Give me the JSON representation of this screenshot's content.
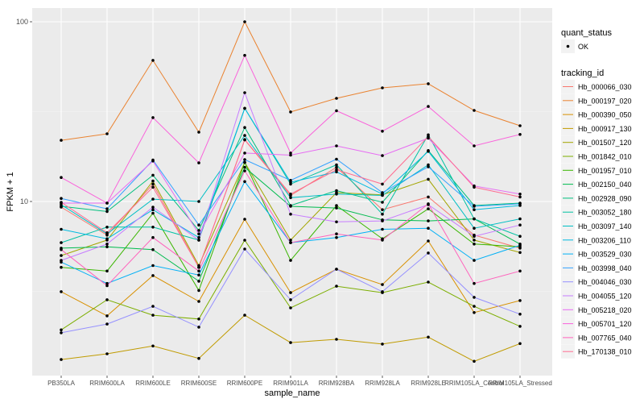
{
  "chart_data": {
    "type": "line",
    "xlabel": "sample_name",
    "ylabel": "FPKM + 1",
    "yscale": "log10",
    "ylim": [
      1.05,
      125
    ],
    "yticks": [
      10,
      100
    ],
    "ytick_labels": [
      "10",
      "100"
    ],
    "grid": true,
    "legend_position": "right",
    "categories": [
      "PB350LA",
      "RRIM600LA",
      "RRIM600LE",
      "RRIM600SE",
      "RRIM600PE",
      "RRIM901LA",
      "RRIM928BA",
      "RRIM928LA",
      "RRIM928LE",
      "RRIM105LA_Control",
      "RRIM105LA_Stressed"
    ],
    "shape_legend": {
      "title": "quant_status",
      "entries": [
        "OK"
      ]
    },
    "color_legend_title": "tracking_id",
    "series": [
      {
        "name": "Hb_000066_030",
        "color": "#F8766D",
        "values": [
          9.3,
          6.5,
          12.5,
          4.3,
          22,
          10.8,
          15.5,
          9.0,
          10.6,
          6.5,
          5.5
        ]
      },
      {
        "name": "Hb_000197_020",
        "color": "#EA8331",
        "values": [
          21.9,
          23.8,
          61,
          24.3,
          100,
          31.5,
          37.5,
          42.9,
          45.2,
          32.1,
          26.4
        ]
      },
      {
        "name": "Hb_000390_050",
        "color": "#D89000",
        "values": [
          3.15,
          2.31,
          3.87,
          2.78,
          7.97,
          3.11,
          4.2,
          3.45,
          6.03,
          2.41,
          2.81
        ]
      },
      {
        "name": "Hb_000917_130",
        "color": "#C09B00",
        "values": [
          1.32,
          1.42,
          1.57,
          1.34,
          2.33,
          1.64,
          1.71,
          1.61,
          1.76,
          1.29,
          1.62
        ]
      },
      {
        "name": "Hb_001507_120",
        "color": "#A3A500",
        "values": [
          5.0,
          6.1,
          13.0,
          4.4,
          16.5,
          6.1,
          11.2,
          10.9,
          13.3,
          6.1,
          5.2
        ]
      },
      {
        "name": "Hb_001842_010",
        "color": "#7CAE00",
        "values": [
          1.93,
          2.84,
          2.33,
          2.22,
          6.09,
          2.56,
          3.38,
          3.11,
          3.56,
          2.61,
          2.02
        ]
      },
      {
        "name": "Hb_001957_010",
        "color": "#39B600",
        "values": [
          4.3,
          4.1,
          8.6,
          3.2,
          16.5,
          4.7,
          9.5,
          6.2,
          9.1,
          5.8,
          5.6
        ]
      },
      {
        "name": "Hb_002150_040",
        "color": "#00BB4E",
        "values": [
          5.5,
          5.6,
          5.4,
          3.6,
          15.5,
          9.4,
          9.2,
          7.9,
          7.8,
          8.0,
          5.8
        ]
      },
      {
        "name": "Hb_002928_090",
        "color": "#00BF7D",
        "values": [
          9.4,
          8.8,
          14,
          6.9,
          25.8,
          9.5,
          11.5,
          9.9,
          19.2,
          9.5,
          9.8
        ]
      },
      {
        "name": "Hb_003052_180",
        "color": "#00C1A3",
        "values": [
          5.9,
          7.2,
          7.2,
          6.1,
          33,
          12.5,
          16.0,
          8.5,
          23.5,
          8.0,
          6.4
        ]
      },
      {
        "name": "Hb_003097_140",
        "color": "#00BFC4",
        "values": [
          9.6,
          6.6,
          10.3,
          10.0,
          23.3,
          10.5,
          11.0,
          10.8,
          16.0,
          7.1,
          8.0
        ]
      },
      {
        "name": "Hb_003206_110",
        "color": "#00BAE0",
        "values": [
          7.0,
          6.2,
          9.0,
          6.3,
          33,
          12.8,
          14.6,
          11.0,
          19.0,
          9.0,
          9.5
        ]
      },
      {
        "name": "Hb_003529_030",
        "color": "#00B0F6",
        "values": [
          4.6,
          3.5,
          4.4,
          3.9,
          12.9,
          5.9,
          6.3,
          7.0,
          7.1,
          4.7,
          5.7
        ]
      },
      {
        "name": "Hb_003998_040",
        "color": "#35A2FF",
        "values": [
          10.4,
          9.1,
          17,
          7.4,
          17.1,
          13.1,
          17.2,
          11.2,
          15.6,
          9.4,
          9.7
        ]
      },
      {
        "name": "Hb_004046_030",
        "color": "#9590FF",
        "values": [
          1.86,
          2.08,
          2.61,
          2.0,
          5.44,
          2.84,
          4.2,
          3.15,
          5.17,
          2.93,
          2.36
        ]
      },
      {
        "name": "Hb_004055_120",
        "color": "#C77CFF",
        "values": [
          4.7,
          5.8,
          9.3,
          6.1,
          40.3,
          8.5,
          7.7,
          7.8,
          9.6,
          6.4,
          7.4
        ]
      },
      {
        "name": "Hb_005218_020",
        "color": "#E76BF3",
        "values": [
          9.8,
          9.8,
          16.8,
          6.6,
          18.6,
          18.1,
          20.4,
          18.0,
          22.5,
          12.2,
          11.0
        ]
      },
      {
        "name": "Hb_005701_120",
        "color": "#FA62DB",
        "values": [
          13.6,
          9.8,
          29.3,
          16.4,
          65,
          18.6,
          32,
          24.6,
          33.8,
          20.4,
          23.6
        ]
      },
      {
        "name": "Hb_007765_040",
        "color": "#FF62BC",
        "values": [
          5.4,
          3.4,
          6.3,
          4.1,
          14.8,
          5.9,
          6.6,
          6.1,
          9.7,
          3.5,
          4.1
        ]
      },
      {
        "name": "Hb_170138_010",
        "color": "#FF6C91",
        "values": [
          9.9,
          6.7,
          12.0,
          4.3,
          22.1,
          11.0,
          15.0,
          12.5,
          23.0,
          12.0,
          10.6
        ]
      }
    ]
  }
}
